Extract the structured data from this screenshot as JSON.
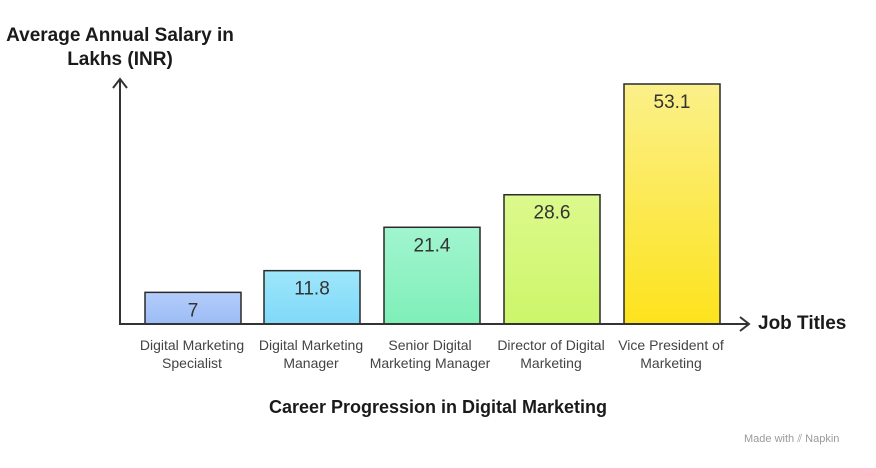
{
  "chart_data": {
    "type": "bar",
    "title": "Career Progression in Digital Marketing",
    "ylabel": "Average Annual Salary in Lakhs (INR)",
    "xlabel": "Job Titles",
    "categories": [
      "Digital Marketing Specialist",
      "Digital Marketing Manager",
      "Senior Digital Marketing Manager",
      "Director of Digital Marketing",
      "Vice President of Marketing"
    ],
    "values": [
      7,
      11.8,
      21.4,
      28.6,
      53.1
    ],
    "value_labels": [
      "7",
      "11.8",
      "21.4",
      "28.6",
      "53.1"
    ],
    "bar_colors": [
      [
        "#b3cdfa",
        "#9dbcf6"
      ],
      [
        "#9ee6fb",
        "#7fd9f8"
      ],
      [
        "#a1f5cf",
        "#7fefb8"
      ],
      [
        "#dcf98c",
        "#cdf66a"
      ],
      [
        "#fbf08a",
        "#fde31d"
      ]
    ],
    "ylim": [
      0,
      53.1
    ],
    "grid": false,
    "legend": "none"
  },
  "watermark": {
    "text": "Made with",
    "brand": "Napkin"
  }
}
